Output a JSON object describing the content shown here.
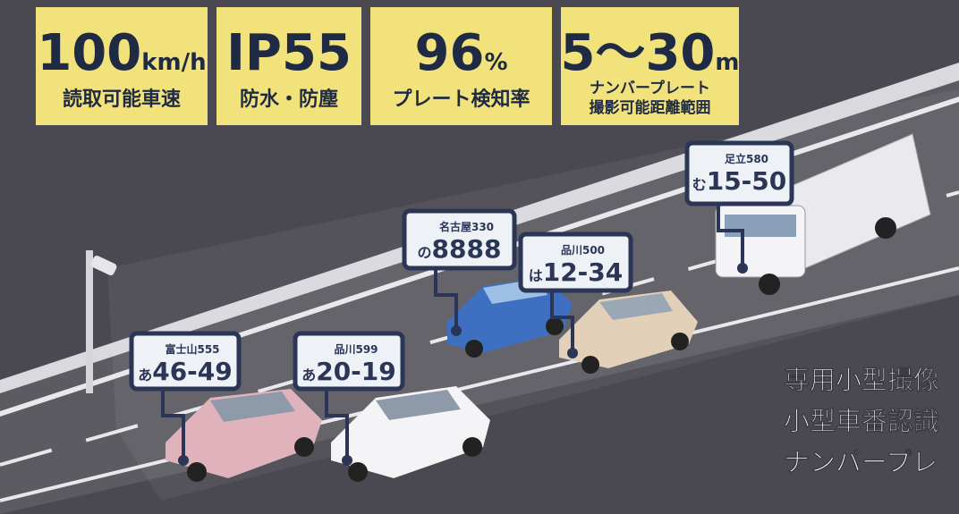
{
  "specs": [
    {
      "value": "100",
      "unit": "km/h",
      "label": [
        "読取可能車速"
      ]
    },
    {
      "value": "IP55",
      "unit": "",
      "label": [
        "防水・防塵"
      ]
    },
    {
      "value": "96",
      "unit": "%",
      "label": [
        "プレート検知率"
      ]
    },
    {
      "value": "5～30",
      "unit": "m",
      "label": [
        "ナンバープレート",
        "撮影可能距離範囲"
      ]
    }
  ],
  "plates": [
    {
      "region": "足立580",
      "kana": "む",
      "number": "15-50"
    },
    {
      "region": "名古屋330",
      "kana": "の",
      "number": "8888"
    },
    {
      "region": "品川500",
      "kana": "は",
      "number": "12-34"
    },
    {
      "region": "富士山555",
      "kana": "あ",
      "number": "46-49"
    },
    {
      "region": "品川599",
      "kana": "あ",
      "number": "20-19"
    }
  ],
  "side_text": [
    "専用小型撮像",
    "小型車番認識",
    "ナンバープレ"
  ]
}
